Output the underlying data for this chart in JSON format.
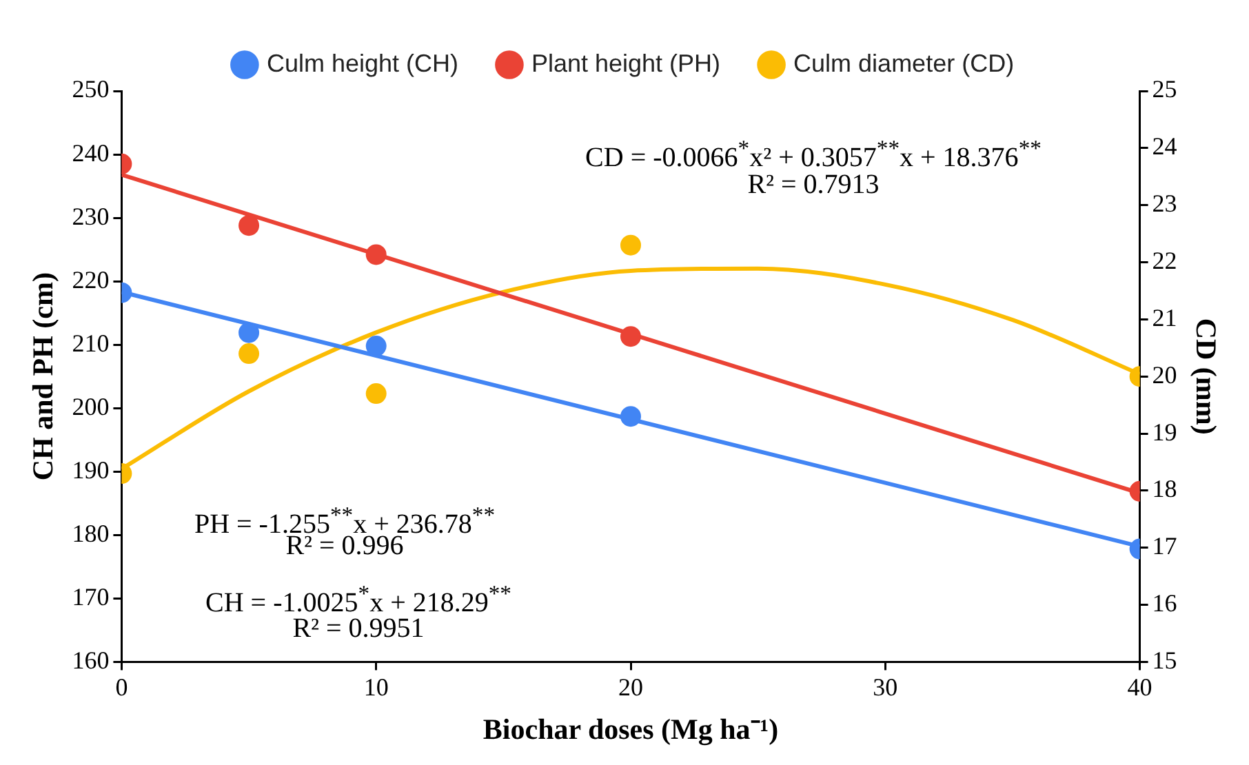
{
  "chart_data": {
    "type": "scatter",
    "xlabel": "Biochar doses (Mg ha⁻¹)",
    "ylabel": "CH and PH (cm)",
    "y2label": "CD (mm)",
    "xlim": [
      0,
      40
    ],
    "xticks": [
      0,
      10,
      20,
      30,
      40
    ],
    "ylim": [
      160,
      250
    ],
    "yticks": [
      160,
      170,
      180,
      190,
      200,
      210,
      220,
      230,
      240,
      250
    ],
    "y2lim": [
      15,
      25
    ],
    "y2ticks": [
      15,
      16,
      17,
      18,
      19,
      20,
      21,
      22,
      23,
      24,
      25
    ],
    "legend": "top",
    "grid": false,
    "marker": "circle",
    "series": [
      {
        "name": "Culm height (CH)",
        "color": "#4285f4",
        "x": [
          0,
          5,
          10,
          20,
          40
        ],
        "values": [
          218.2,
          211.9,
          209.8,
          198.7,
          177.8
        ]
      },
      {
        "name": "Plant height (PH)",
        "color": "#ea4335",
        "x": [
          0,
          5,
          10,
          20,
          40
        ],
        "values": [
          238.5,
          228.8,
          224.2,
          211.3,
          186.9
        ]
      },
      {
        "name": "Culm diameter (CD)",
        "color": "#fbbc04",
        "axis": "y2",
        "x": [
          0,
          5,
          10,
          20,
          40
        ],
        "values": [
          18.3,
          20.4,
          19.7,
          22.3,
          20.0
        ]
      },
      {
        "type": "line",
        "marker": "none",
        "color": "#4285f4",
        "x": [
          0,
          40
        ],
        "values": [
          218.3,
          178.2
        ]
      },
      {
        "type": "line",
        "marker": "none",
        "color": "#ea4335",
        "x": [
          0,
          40
        ],
        "values": [
          236.8,
          186.6
        ]
      },
      {
        "type": "line",
        "marker": "none",
        "color": "#fbbc04",
        "axis": "y2",
        "x": [
          0,
          5,
          10,
          15,
          20,
          25,
          30,
          35,
          40
        ],
        "values": [
          18.38,
          19.74,
          20.77,
          21.48,
          21.85,
          21.89,
          21.61,
          20.99,
          20.04
        ]
      }
    ],
    "annotations": [
      "CD = -0.0066$^{*}$x² + 0.3057$^{**}$x + 18.376$^{**}$",
      "R² = 0.7913",
      "PH = -1.255$^{**}$x + 236.78$^{**}$",
      "R² = 0.996",
      "CH = -1.0025$^{*}$x + 218.29$^{**}$",
      "R² = 0.9951"
    ]
  }
}
